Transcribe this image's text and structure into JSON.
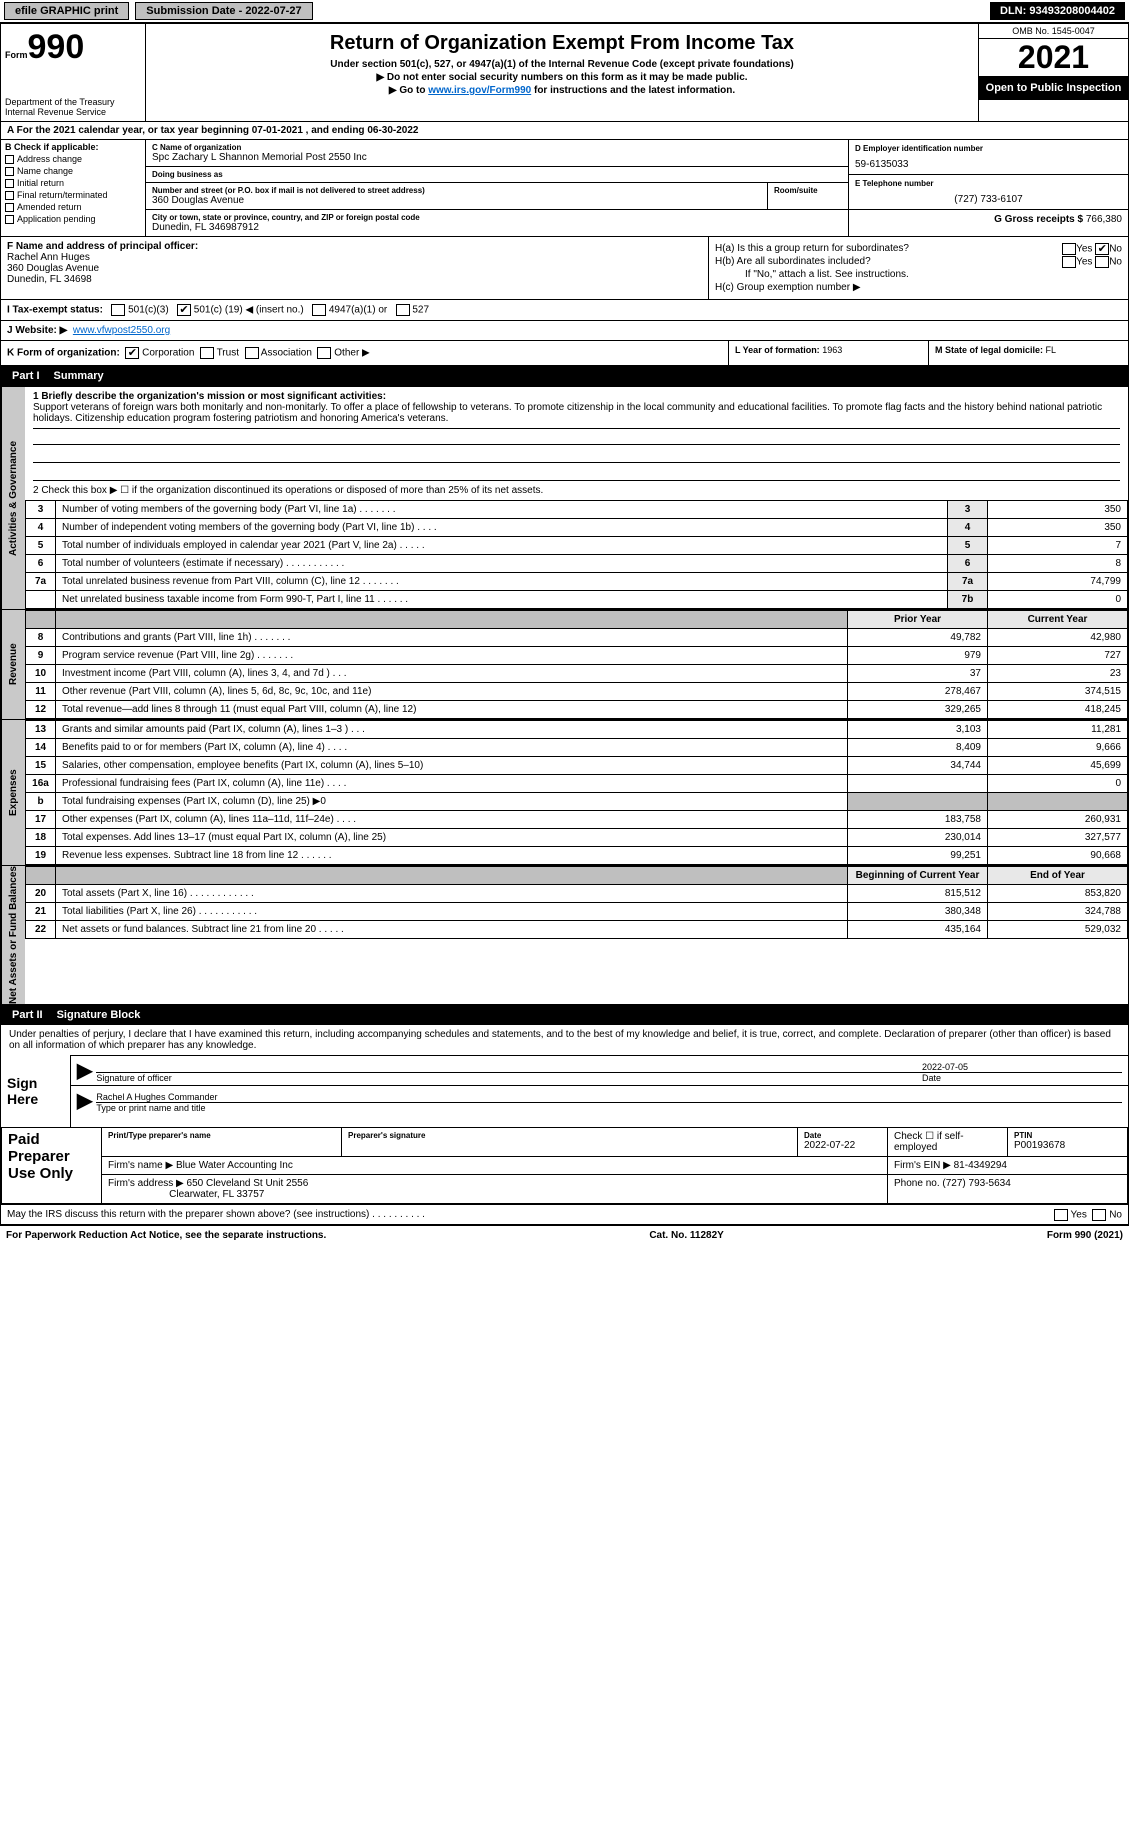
{
  "topbar": {
    "efile": "efile GRAPHIC print",
    "subdate_label": "Submission Date - 2022-07-27",
    "dln": "DLN: 93493208004402"
  },
  "header": {
    "form_word": "Form",
    "form_num": "990",
    "dept": "Department of the Treasury Internal Revenue Service",
    "title": "Return of Organization Exempt From Income Tax",
    "sub1": "Under section 501(c), 527, or 4947(a)(1) of the Internal Revenue Code (except private foundations)",
    "sub2": "▶ Do not enter social security numbers on this form as it may be made public.",
    "sub3_pre": "▶ Go to ",
    "sub3_link": "www.irs.gov/Form990",
    "sub3_post": " for instructions and the latest information.",
    "omb": "OMB No. 1545-0047",
    "year": "2021",
    "open": "Open to Public Inspection"
  },
  "row_a": "A For the 2021 calendar year, or tax year beginning 07-01-2021    , and ending 06-30-2022",
  "col_b": {
    "hdr": "B Check if applicable:",
    "items": [
      "Address change",
      "Name change",
      "Initial return",
      "Final return/terminated",
      "Amended return",
      "Application pending"
    ]
  },
  "col_c": {
    "name_label": "C Name of organization",
    "name": "Spc Zachary L Shannon Memorial Post 2550 Inc",
    "dba_label": "Doing business as",
    "dba": "",
    "street_label": "Number and street (or P.O. box if mail is not delivered to street address)",
    "street": "360 Douglas Avenue",
    "room_label": "Room/suite",
    "city_label": "City or town, state or province, country, and ZIP or foreign postal code",
    "city": "Dunedin, FL 346987912"
  },
  "col_d": {
    "label": "D Employer identification number",
    "val": "59-6135033"
  },
  "col_e": {
    "label": "E Telephone number",
    "val": "(727) 733-6107"
  },
  "col_g": {
    "label": "G Gross receipts $",
    "val": "766,380"
  },
  "col_f": {
    "label": "F Name and address of principal officer:",
    "name": "Rachel Ann Huges",
    "addr1": "360 Douglas Avenue",
    "addr2": "Dunedin, FL  34698"
  },
  "col_h": {
    "a": "H(a)  Is this a group return for subordinates?",
    "b": "H(b)  Are all subordinates included?",
    "b_note": "If \"No,\" attach a list. See instructions.",
    "c": "H(c)  Group exemption number ▶",
    "yes": "Yes",
    "no": "No"
  },
  "row_i": {
    "label": "I  Tax-exempt status:",
    "opt1": "501(c)(3)",
    "opt2_pre": "501(c) (",
    "opt2_num": "19",
    "opt2_post": ") ◀ (insert no.)",
    "opt3": "4947(a)(1) or",
    "opt4": "527"
  },
  "row_j": {
    "label": "J  Website: ▶",
    "val": "www.vfwpost2550.org"
  },
  "row_k": {
    "label": "K Form of organization:",
    "opts": [
      "Corporation",
      "Trust",
      "Association",
      "Other ▶"
    ]
  },
  "row_l": {
    "label": "L Year of formation:",
    "val": "1963"
  },
  "row_m": {
    "label": "M State of legal domicile:",
    "val": "FL"
  },
  "part1": {
    "num": "Part I",
    "title": "Summary",
    "side_ag": "Activities & Governance",
    "side_rev": "Revenue",
    "side_exp": "Expenses",
    "side_net": "Net Assets or Fund Balances",
    "q1_label": "1 Briefly describe the organization's mission or most significant activities:",
    "q1_text": "Support veterans of foreign wars both monitarly and non-monitarly. To offer a place of fellowship to veterans. To promote citizenship in the local community and educational facilities. To promote flag facts and the history behind national patriotic holidays. Citizenship education program fostering patriotism and honoring America's veterans.",
    "q2": "2  Check this box ▶ ☐ if the organization discontinued its operations or disposed of more than 25% of its net assets.",
    "lines_ag": [
      {
        "n": "3",
        "d": "Number of voting members of the governing body (Part VI, line 1a)   .    .    .    .    .    .    .",
        "b": "3",
        "v": "350"
      },
      {
        "n": "4",
        "d": "Number of independent voting members of the governing body (Part VI, line 1b)   .    .    .    .",
        "b": "4",
        "v": "350"
      },
      {
        "n": "5",
        "d": "Total number of individuals employed in calendar year 2021 (Part V, line 2a)   .    .    .    .    .",
        "b": "5",
        "v": "7"
      },
      {
        "n": "6",
        "d": "Total number of volunteers (estimate if necessary)    .    .    .    .    .    .    .    .    .    .    .",
        "b": "6",
        "v": "8"
      },
      {
        "n": "7a",
        "d": "Total unrelated business revenue from Part VIII, column (C), line 12  .    .    .    .    .    .    .",
        "b": "7a",
        "v": "74,799"
      },
      {
        "n": "",
        "d": "Net unrelated business taxable income from Form 990-T, Part I, line 11    .    .    .    .    .    .",
        "b": "7b",
        "v": "0"
      }
    ],
    "hdr_prior": "Prior Year",
    "hdr_curr": "Current Year",
    "lines_rev": [
      {
        "n": "8",
        "d": "Contributions and grants (Part VIII, line 1h)   .    .    .    .    .    .    .",
        "p": "49,782",
        "c": "42,980"
      },
      {
        "n": "9",
        "d": "Program service revenue (Part VIII, line 2g)  .    .    .    .    .    .    .",
        "p": "979",
        "c": "727"
      },
      {
        "n": "10",
        "d": "Investment income (Part VIII, column (A), lines 3, 4, and 7d )   .    .    .",
        "p": "37",
        "c": "23"
      },
      {
        "n": "11",
        "d": "Other revenue (Part VIII, column (A), lines 5, 6d, 8c, 9c, 10c, and 11e)",
        "p": "278,467",
        "c": "374,515"
      },
      {
        "n": "12",
        "d": "Total revenue—add lines 8 through 11 (must equal Part VIII, column (A), line 12)",
        "p": "329,265",
        "c": "418,245"
      }
    ],
    "lines_exp": [
      {
        "n": "13",
        "d": "Grants and similar amounts paid (Part IX, column (A), lines 1–3 )  .    .    .",
        "p": "3,103",
        "c": "11,281"
      },
      {
        "n": "14",
        "d": "Benefits paid to or for members (Part IX, column (A), line 4)  .    .    .    .",
        "p": "8,409",
        "c": "9,666"
      },
      {
        "n": "15",
        "d": "Salaries, other compensation, employee benefits (Part IX, column (A), lines 5–10)",
        "p": "34,744",
        "c": "45,699"
      },
      {
        "n": "16a",
        "d": "Professional fundraising fees (Part IX, column (A), line 11e)  .    .    .    .",
        "p": "",
        "c": "0"
      },
      {
        "n": "b",
        "d": "Total fundraising expenses (Part IX, column (D), line 25) ▶0",
        "p": "GREY",
        "c": "GREY"
      },
      {
        "n": "17",
        "d": "Other expenses (Part IX, column (A), lines 11a–11d, 11f–24e)  .    .    .    .",
        "p": "183,758",
        "c": "260,931"
      },
      {
        "n": "18",
        "d": "Total expenses. Add lines 13–17 (must equal Part IX, column (A), line 25)",
        "p": "230,014",
        "c": "327,577"
      },
      {
        "n": "19",
        "d": "Revenue less expenses. Subtract line 18 from line 12  .    .    .    .    .    .",
        "p": "99,251",
        "c": "90,668"
      }
    ],
    "hdr_beg": "Beginning of Current Year",
    "hdr_end": "End of Year",
    "lines_net": [
      {
        "n": "20",
        "d": "Total assets (Part X, line 16)  .    .    .    .    .    .    .    .    .    .    .    .",
        "p": "815,512",
        "c": "853,820"
      },
      {
        "n": "21",
        "d": "Total liabilities (Part X, line 26)  .    .    .    .    .    .    .    .    .    .    .",
        "p": "380,348",
        "c": "324,788"
      },
      {
        "n": "22",
        "d": "Net assets or fund balances. Subtract line 21 from line 20  .    .    .    .    .",
        "p": "435,164",
        "c": "529,032"
      }
    ]
  },
  "part2": {
    "num": "Part II",
    "title": "Signature Block",
    "decl": "Under penalties of perjury, I declare that I have examined this return, including accompanying schedules and statements, and to the best of my knowledge and belief, it is true, correct, and complete. Declaration of preparer (other than officer) is based on all information of which preparer has any knowledge.",
    "sign_here": "Sign Here",
    "sig_officer": "Signature of officer",
    "sig_date_val": "2022-07-05",
    "date_label": "Date",
    "typed_name": "Rachel A Hughes  Commander",
    "typed_label": "Type or print name and title",
    "paid": "Paid Preparer Use Only",
    "pp_name_label": "Print/Type preparer's name",
    "pp_sig_label": "Preparer's signature",
    "pp_date_label": "Date",
    "pp_date": "2022-07-22",
    "pp_self": "Check ☐ if self-employed",
    "pp_ptin_label": "PTIN",
    "pp_ptin": "P00193678",
    "firm_name_label": "Firm's name    ▶",
    "firm_name": "Blue Water Accounting Inc",
    "firm_ein_label": "Firm's EIN ▶",
    "firm_ein": "81-4349294",
    "firm_addr_label": "Firm's address ▶",
    "firm_addr1": "650 Cleveland St Unit 2556",
    "firm_addr2": "Clearwater, FL  33757",
    "firm_phone_label": "Phone no.",
    "firm_phone": "(727) 793-5634",
    "may_irs": "May the IRS discuss this return with the preparer shown above? (see instructions)   .    .    .    .    .    .    .    .    .    .",
    "yes": "Yes",
    "no": "No"
  },
  "footer": {
    "left": "For Paperwork Reduction Act Notice, see the separate instructions.",
    "mid": "Cat. No. 11282Y",
    "right": "Form 990 (2021)"
  }
}
